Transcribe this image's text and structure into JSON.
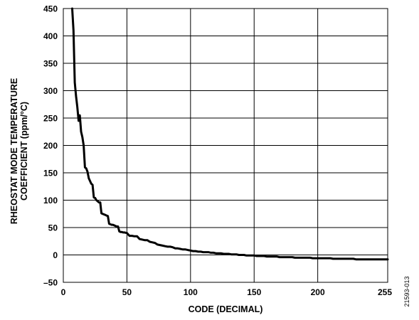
{
  "chart_data": {
    "type": "line",
    "title": "",
    "xlabel": "CODE (DECIMAL)",
    "ylabel_lines": [
      "RHEOSTAT MODE TEMPERATURE",
      "COEFFICIENT (ppm/°C)"
    ],
    "xlim": [
      0,
      255
    ],
    "ylim": [
      -50,
      450
    ],
    "xticks": [
      "0",
      "50",
      "100",
      "150",
      "200",
      "255"
    ],
    "yticks": [
      "–50",
      "0",
      "50",
      "100",
      "150",
      "200",
      "250",
      "300",
      "350",
      "400",
      "450"
    ],
    "grid": true,
    "series": [
      {
        "color": "#000000",
        "x": [
          7,
          8,
          9,
          10,
          11,
          12,
          13,
          14,
          15,
          16,
          17,
          18,
          19,
          20,
          21,
          22,
          23,
          24,
          25,
          26,
          27,
          28,
          29,
          30,
          31,
          32,
          33,
          34,
          35,
          36,
          37,
          38,
          39,
          40,
          41,
          42,
          43,
          44,
          45,
          46,
          47,
          48,
          50,
          52,
          54,
          56,
          58,
          60,
          62,
          64,
          66,
          68,
          70,
          72,
          74,
          76,
          78,
          80,
          82,
          84,
          86,
          88,
          90,
          92,
          94,
          96,
          98,
          100,
          102,
          104,
          106,
          108,
          110,
          112,
          114,
          116,
          118,
          120,
          122,
          124,
          126,
          128,
          130,
          132,
          134,
          136,
          138,
          140,
          142,
          144,
          146,
          148,
          150,
          152,
          154,
          156,
          158,
          160,
          162,
          164,
          166,
          168,
          170,
          172,
          174,
          176,
          178,
          180,
          182,
          184,
          186,
          188,
          190,
          192,
          194,
          196,
          198,
          200,
          202,
          204,
          206,
          208,
          210,
          212,
          214,
          216,
          218,
          220,
          222,
          224,
          226,
          228,
          230,
          232,
          234,
          236,
          238,
          240,
          242,
          244,
          246,
          248,
          250,
          252,
          254,
          255
        ],
        "y": [
          450,
          410,
          315,
          290,
          270,
          245,
          255,
          225,
          215,
          200,
          160,
          158,
          152,
          140,
          135,
          130,
          128,
          105,
          104,
          100,
          98,
          96,
          96,
          76,
          75,
          74,
          73,
          72,
          71,
          57,
          56,
          55,
          55,
          54,
          53,
          52,
          52,
          43,
          42,
          42,
          41,
          41,
          40,
          35,
          35,
          34,
          34,
          29,
          28,
          27,
          27,
          24,
          23,
          22,
          19,
          18,
          17,
          16,
          15,
          15,
          14,
          12,
          12,
          11,
          10,
          10,
          9,
          8,
          7,
          7,
          6,
          6,
          5,
          5,
          5,
          4,
          4,
          3,
          3,
          3,
          2,
          2,
          2,
          1,
          1,
          1,
          0,
          0,
          0,
          -1,
          -1,
          -1,
          -1,
          -2,
          -2,
          -2,
          -2,
          -3,
          -3,
          -3,
          -3,
          -3,
          -4,
          -4,
          -4,
          -4,
          -4,
          -4,
          -5,
          -5,
          -5,
          -5,
          -5,
          -5,
          -5,
          -6,
          -6,
          -6,
          -6,
          -6,
          -6,
          -6,
          -6,
          -7,
          -7,
          -7,
          -7,
          -7,
          -7,
          -7,
          -7,
          -7,
          -8,
          -8,
          -8,
          -8,
          -8,
          -8,
          -8,
          -8,
          -8,
          -8,
          -8,
          -8,
          -8,
          -8
        ]
      }
    ]
  },
  "figure_id": "21593-013"
}
